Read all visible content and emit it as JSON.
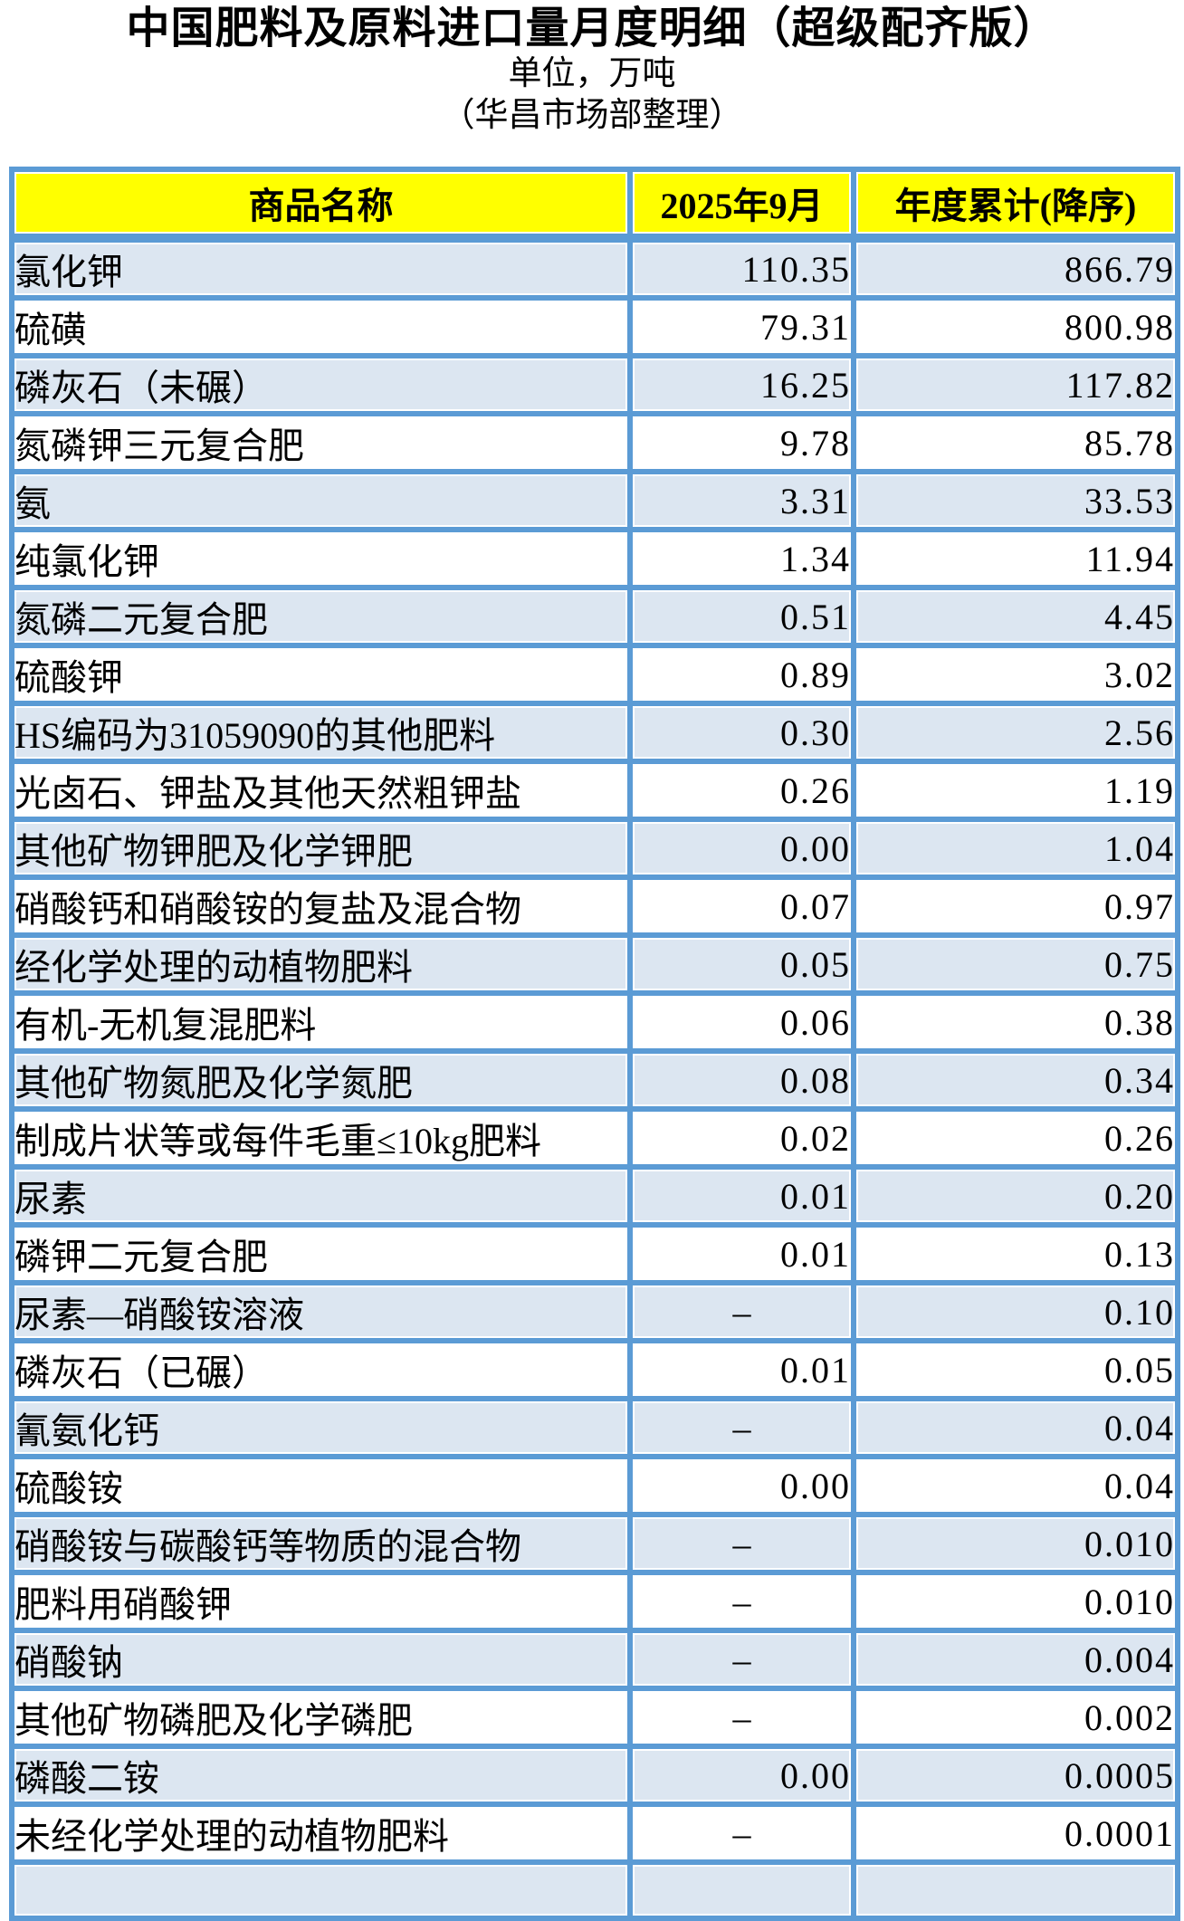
{
  "page": {
    "title": "中国肥料及原料进口量月度明细（超级配齐版）",
    "subtitle_unit": "单位，万吨",
    "subtitle_source": "（华昌市场部整理）"
  },
  "colors": {
    "border_blue": "#5b9bd5",
    "row_alt_blue": "#dce6f1",
    "header_yellow": "#ffff00",
    "text": "#000000"
  },
  "table": {
    "columns": [
      "商品名称",
      "2025年9月",
      "年度累计(降序)"
    ],
    "dash": "–",
    "rows": [
      {
        "name": "氯化钾",
        "month": "110.35",
        "ytd": "866.79"
      },
      {
        "name": "硫磺",
        "month": "79.31",
        "ytd": "800.98"
      },
      {
        "name": "磷灰石（未碾）",
        "month": "16.25",
        "ytd": "117.82"
      },
      {
        "name": "氮磷钾三元复合肥",
        "month": "9.78",
        "ytd": "85.78"
      },
      {
        "name": "氨",
        "month": "3.31",
        "ytd": "33.53"
      },
      {
        "name": "纯氯化钾",
        "month": "1.34",
        "ytd": "11.94"
      },
      {
        "name": "氮磷二元复合肥",
        "month": "0.51",
        "ytd": "4.45"
      },
      {
        "name": "硫酸钾",
        "month": "0.89",
        "ytd": "3.02"
      },
      {
        "name": "HS编码为31059090的其他肥料",
        "month": "0.30",
        "ytd": "2.56"
      },
      {
        "name": "光卤石、钾盐及其他天然粗钾盐",
        "month": "0.26",
        "ytd": "1.19"
      },
      {
        "name": "其他矿物钾肥及化学钾肥",
        "month": "0.00",
        "ytd": "1.04"
      },
      {
        "name": "硝酸钙和硝酸铵的复盐及混合物",
        "month": "0.07",
        "ytd": "0.97"
      },
      {
        "name": "经化学处理的动植物肥料",
        "month": "0.05",
        "ytd": "0.75"
      },
      {
        "name": "有机-无机复混肥料",
        "month": "0.06",
        "ytd": "0.38"
      },
      {
        "name": "其他矿物氮肥及化学氮肥",
        "month": "0.08",
        "ytd": "0.34"
      },
      {
        "name": "制成片状等或每件毛重≤10kg肥料",
        "month": "0.02",
        "ytd": "0.26"
      },
      {
        "name": "尿素",
        "month": "0.01",
        "ytd": "0.20"
      },
      {
        "name": "磷钾二元复合肥",
        "month": "0.01",
        "ytd": "0.13"
      },
      {
        "name": "尿素—硝酸铵溶液",
        "month": "–",
        "ytd": "0.10"
      },
      {
        "name": "磷灰石（已碾）",
        "month": "0.01",
        "ytd": "0.05"
      },
      {
        "name": "氰氨化钙",
        "month": "–",
        "ytd": "0.04"
      },
      {
        "name": "硫酸铵",
        "month": "0.00",
        "ytd": "0.04"
      },
      {
        "name": "硝酸铵与碳酸钙等物质的混合物",
        "month": "–",
        "ytd": "0.010"
      },
      {
        "name": "肥料用硝酸钾",
        "month": "–",
        "ytd": "0.010"
      },
      {
        "name": "硝酸钠",
        "month": "–",
        "ytd": "0.004"
      },
      {
        "name": "其他矿物磷肥及化学磷肥",
        "month": "–",
        "ytd": "0.002"
      },
      {
        "name": "磷酸二铵",
        "month": "0.00",
        "ytd": "0.0005"
      },
      {
        "name": "未经化学处理的动植物肥料",
        "month": "–",
        "ytd": "0.0001"
      }
    ],
    "partial_row": {
      "name": "",
      "month": "",
      "ytd": ""
    }
  }
}
